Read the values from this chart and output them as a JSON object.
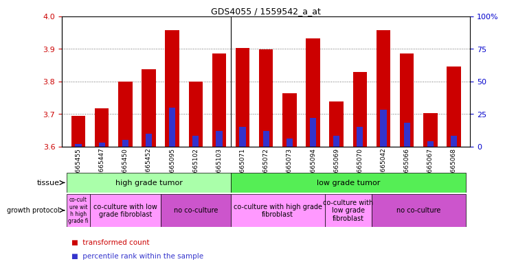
{
  "title": "GDS4055 / 1559542_a_at",
  "samples": [
    "GSM665455",
    "GSM665447",
    "GSM665450",
    "GSM665452",
    "GSM665095",
    "GSM665102",
    "GSM665103",
    "GSM665071",
    "GSM665072",
    "GSM665073",
    "GSM665094",
    "GSM665069",
    "GSM665070",
    "GSM665042",
    "GSM665066",
    "GSM665067",
    "GSM665068"
  ],
  "transformed_counts": [
    3.693,
    3.718,
    3.8,
    3.838,
    3.958,
    3.8,
    3.885,
    3.903,
    3.898,
    3.763,
    3.931,
    3.738,
    3.828,
    3.958,
    3.885,
    3.703,
    3.845
  ],
  "percentile_ranks": [
    2,
    3,
    5,
    10,
    30,
    8,
    12,
    15,
    12,
    6,
    22,
    8,
    15,
    28,
    18,
    4,
    8
  ],
  "ylim": [
    3.6,
    4.0
  ],
  "yticks": [
    3.6,
    3.7,
    3.8,
    3.9,
    4.0
  ],
  "right_yticks": [
    0,
    25,
    50,
    75,
    100
  ],
  "right_ylim": [
    0,
    100
  ],
  "bar_color_red": "#cc0000",
  "bar_color_blue": "#3333cc",
  "tissue_groups": [
    {
      "label": "high grade tumor",
      "start": 0,
      "end": 7,
      "color": "#aaffaa"
    },
    {
      "label": "low grade tumor",
      "start": 7,
      "end": 17,
      "color": "#55ee55"
    }
  ],
  "growth_protocol_groups": [
    {
      "label": "co-cult\nure wit\nh high\ngrade fi",
      "start": 0,
      "end": 1,
      "color": "#ff99ff"
    },
    {
      "label": "co-culture with low\ngrade fibroblast",
      "start": 1,
      "end": 4,
      "color": "#ff99ff"
    },
    {
      "label": "no co-culture",
      "start": 4,
      "end": 7,
      "color": "#cc55cc"
    },
    {
      "label": "co-culture with high grade\nfibroblast",
      "start": 7,
      "end": 11,
      "color": "#ff99ff"
    },
    {
      "label": "co-culture with\nlow grade\nfibroblast",
      "start": 11,
      "end": 13,
      "color": "#ff99ff"
    },
    {
      "label": "no co-culture",
      "start": 13,
      "end": 17,
      "color": "#cc55cc"
    }
  ],
  "background_color": "#ffffff",
  "grid_color": "#666666",
  "tick_label_color_left": "#cc0000",
  "tick_label_color_right": "#0000cc",
  "separator_col": 6.5
}
